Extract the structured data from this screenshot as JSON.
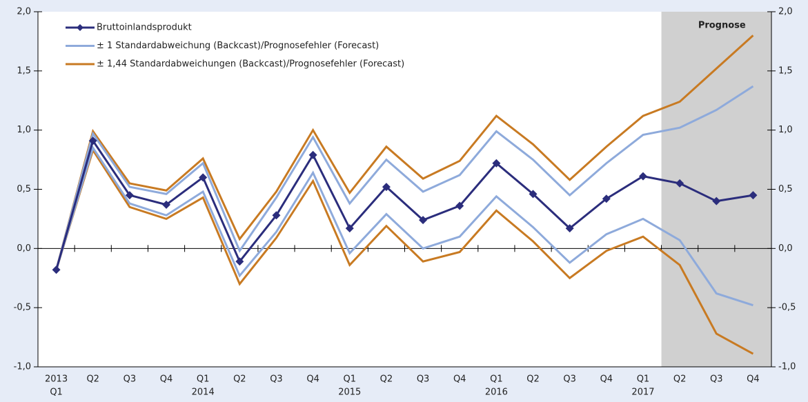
{
  "chart_data": {
    "type": "line",
    "annotation": "Prognose",
    "categories": [
      [
        "2013",
        "Q1"
      ],
      [
        "Q2"
      ],
      [
        "Q3"
      ],
      [
        "Q4"
      ],
      [
        "Q1",
        "2014"
      ],
      [
        "Q2"
      ],
      [
        "Q3"
      ],
      [
        "Q4"
      ],
      [
        "Q1",
        "2015"
      ],
      [
        "Q2"
      ],
      [
        "Q3"
      ],
      [
        "Q4"
      ],
      [
        "Q1",
        "2016"
      ],
      [
        "Q2"
      ],
      [
        "Q3"
      ],
      [
        "Q4"
      ],
      [
        "Q1",
        "2017"
      ],
      [
        "Q2"
      ],
      [
        "Q3"
      ],
      [
        "Q4"
      ]
    ],
    "series": [
      {
        "name": "Bruttoinlandsprodukt",
        "color": "#2b2d7c",
        "values": [
          -0.18,
          0.91,
          0.45,
          0.37,
          0.6,
          -0.11,
          0.28,
          0.79,
          0.17,
          0.52,
          0.24,
          0.36,
          0.72,
          0.46,
          0.17,
          0.42,
          0.61,
          0.55,
          0.4,
          0.45
        ]
      },
      {
        "name": "± 1 Standardabweichung (Backcast)/Prognosefehler (Forecast)",
        "color": "#8eaadb",
        "upper": [
          -0.18,
          0.97,
          0.52,
          0.46,
          0.72,
          -0.02,
          0.43,
          0.94,
          0.38,
          0.75,
          0.48,
          0.62,
          0.99,
          0.75,
          0.45,
          0.72,
          0.96,
          1.02,
          1.17,
          1.37
        ],
        "lower": [
          -0.18,
          0.85,
          0.38,
          0.28,
          0.48,
          -0.23,
          0.14,
          0.64,
          -0.04,
          0.29,
          0.0,
          0.1,
          0.44,
          0.18,
          -0.12,
          0.12,
          0.25,
          0.07,
          -0.38,
          -0.48
        ]
      },
      {
        "name": "± 1,44 Standardabweichungen (Backcast)/Prognosefehler (Forecast)",
        "color": "#c87a22",
        "upper": [
          -0.18,
          0.99,
          0.55,
          0.49,
          0.76,
          0.08,
          0.48,
          1.0,
          0.47,
          0.86,
          0.59,
          0.74,
          1.12,
          0.88,
          0.58,
          0.86,
          1.12,
          1.24,
          1.52,
          1.8
        ],
        "lower": [
          -0.18,
          0.83,
          0.35,
          0.25,
          0.43,
          -0.3,
          0.09,
          0.57,
          -0.14,
          0.19,
          -0.11,
          -0.03,
          0.32,
          0.06,
          -0.25,
          -0.02,
          0.1,
          -0.14,
          -0.72,
          -0.89
        ]
      }
    ],
    "ylim": [
      -1,
      2
    ],
    "yticks": [
      {
        "value": -1,
        "label": "-1,0"
      },
      {
        "value": -0.5,
        "label": "-0,5"
      },
      {
        "value": 0,
        "label": "0,0"
      },
      {
        "value": 0.5,
        "label": "0,5"
      },
      {
        "value": 1,
        "label": "1,0"
      },
      {
        "value": 1.5,
        "label": "1,5"
      },
      {
        "value": 2,
        "label": "2,0"
      }
    ],
    "y2lim": [
      -1,
      2
    ],
    "y2ticks": [
      {
        "value": -1,
        "label": "-1,0"
      },
      {
        "value": -0.5,
        "label": "-0,5"
      },
      {
        "value": 0,
        "label": "0,0"
      },
      {
        "value": 0.5,
        "label": "0,5"
      },
      {
        "value": 1,
        "label": "1,0"
      },
      {
        "value": 1.5,
        "label": "1,5"
      },
      {
        "value": 2,
        "label": "2,0"
      }
    ],
    "legend": "upper left"
  }
}
